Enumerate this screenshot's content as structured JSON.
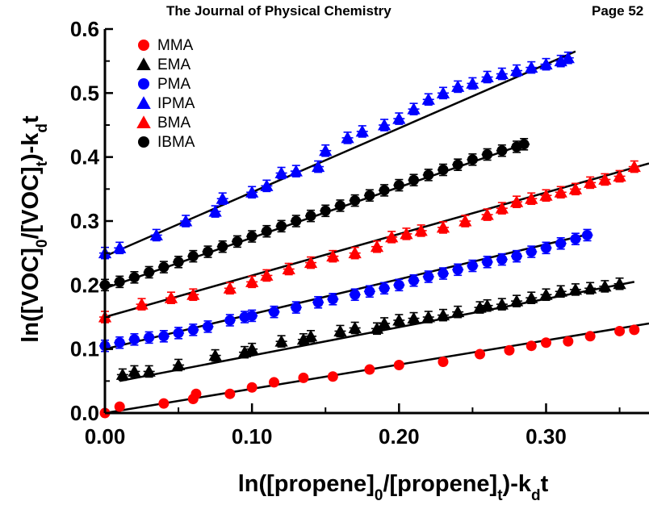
{
  "header": {
    "journal": "The Journal of Physical Chemistry",
    "page": "Page 52"
  },
  "chart_data": {
    "type": "scatter",
    "title": "",
    "xlabel": "ln([propene]0/[propene]t)-kdt",
    "ylabel": "ln([VOC]0/[VOC]t)-kdt",
    "xlim": [
      0.0,
      0.37
    ],
    "ylim": [
      0.0,
      0.6
    ],
    "x_ticks": [
      "0.00",
      "0.10",
      "0.20",
      "0.30"
    ],
    "y_ticks": [
      "0.0",
      "0.1",
      "0.2",
      "0.3",
      "0.4",
      "0.5",
      "0.6"
    ],
    "legend_position": "top-left",
    "series": [
      {
        "name": "MMA",
        "marker": "circle",
        "color": "#ff0000",
        "error_bars": false,
        "fit_line": {
          "x": [
            0.0,
            0.37
          ],
          "y": [
            0.0,
            0.14
          ]
        },
        "points": [
          [
            0.0,
            0.0
          ],
          [
            0.01,
            0.01
          ],
          [
            0.04,
            0.015
          ],
          [
            0.06,
            0.022
          ],
          [
            0.062,
            0.03
          ],
          [
            0.085,
            0.03
          ],
          [
            0.1,
            0.04
          ],
          [
            0.115,
            0.048
          ],
          [
            0.135,
            0.055
          ],
          [
            0.155,
            0.057
          ],
          [
            0.18,
            0.068
          ],
          [
            0.2,
            0.075
          ],
          [
            0.23,
            0.08
          ],
          [
            0.255,
            0.092
          ],
          [
            0.275,
            0.098
          ],
          [
            0.29,
            0.105
          ],
          [
            0.3,
            0.11
          ],
          [
            0.315,
            0.112
          ],
          [
            0.33,
            0.12
          ],
          [
            0.35,
            0.128
          ],
          [
            0.36,
            0.13
          ]
        ]
      },
      {
        "name": "EMA",
        "marker": "triangle",
        "color": "#000000",
        "error_bars": true,
        "fit_line": {
          "x": [
            0.01,
            0.36
          ],
          "y": [
            0.05,
            0.205
          ]
        },
        "points": [
          [
            0.012,
            0.06
          ],
          [
            0.02,
            0.065
          ],
          [
            0.03,
            0.065
          ],
          [
            0.05,
            0.075
          ],
          [
            0.075,
            0.09
          ],
          [
            0.095,
            0.095
          ],
          [
            0.1,
            0.1
          ],
          [
            0.12,
            0.112
          ],
          [
            0.135,
            0.115
          ],
          [
            0.14,
            0.12
          ],
          [
            0.16,
            0.128
          ],
          [
            0.17,
            0.133
          ],
          [
            0.185,
            0.132
          ],
          [
            0.19,
            0.14
          ],
          [
            0.2,
            0.145
          ],
          [
            0.21,
            0.148
          ],
          [
            0.22,
            0.15
          ],
          [
            0.23,
            0.153
          ],
          [
            0.24,
            0.158
          ],
          [
            0.255,
            0.165
          ],
          [
            0.26,
            0.168
          ],
          [
            0.27,
            0.17
          ],
          [
            0.28,
            0.175
          ],
          [
            0.29,
            0.18
          ],
          [
            0.3,
            0.185
          ],
          [
            0.31,
            0.19
          ],
          [
            0.32,
            0.193
          ],
          [
            0.33,
            0.195
          ],
          [
            0.34,
            0.198
          ],
          [
            0.35,
            0.202
          ]
        ]
      },
      {
        "name": "PMA",
        "marker": "circle",
        "color": "#0000ff",
        "error_bars": true,
        "fit_line": {
          "x": [
            0.0,
            0.33
          ],
          "y": [
            0.1,
            0.28
          ]
        },
        "points": [
          [
            0.0,
            0.105
          ],
          [
            0.01,
            0.11
          ],
          [
            0.02,
            0.115
          ],
          [
            0.03,
            0.118
          ],
          [
            0.04,
            0.12
          ],
          [
            0.05,
            0.125
          ],
          [
            0.06,
            0.13
          ],
          [
            0.07,
            0.135
          ],
          [
            0.085,
            0.145
          ],
          [
            0.095,
            0.15
          ],
          [
            0.1,
            0.152
          ],
          [
            0.115,
            0.158
          ],
          [
            0.13,
            0.165
          ],
          [
            0.145,
            0.173
          ],
          [
            0.155,
            0.178
          ],
          [
            0.17,
            0.185
          ],
          [
            0.18,
            0.19
          ],
          [
            0.19,
            0.195
          ],
          [
            0.2,
            0.2
          ],
          [
            0.21,
            0.207
          ],
          [
            0.22,
            0.213
          ],
          [
            0.23,
            0.218
          ],
          [
            0.24,
            0.224
          ],
          [
            0.25,
            0.23
          ],
          [
            0.26,
            0.236
          ],
          [
            0.27,
            0.24
          ],
          [
            0.28,
            0.245
          ],
          [
            0.29,
            0.252
          ],
          [
            0.3,
            0.258
          ],
          [
            0.31,
            0.265
          ],
          [
            0.32,
            0.272
          ],
          [
            0.328,
            0.278
          ]
        ]
      },
      {
        "name": "IPMA",
        "marker": "triangle",
        "color": "#0000ff",
        "error_bars": true,
        "fit_line": {
          "x": [
            0.0,
            0.32
          ],
          "y": [
            0.245,
            0.565
          ]
        },
        "points": [
          [
            0.0,
            0.25
          ],
          [
            0.01,
            0.258
          ],
          [
            0.035,
            0.278
          ],
          [
            0.055,
            0.3
          ],
          [
            0.075,
            0.315
          ],
          [
            0.08,
            0.335
          ],
          [
            0.1,
            0.345
          ],
          [
            0.11,
            0.355
          ],
          [
            0.12,
            0.375
          ],
          [
            0.13,
            0.378
          ],
          [
            0.145,
            0.385
          ],
          [
            0.15,
            0.41
          ],
          [
            0.165,
            0.43
          ],
          [
            0.175,
            0.44
          ],
          [
            0.19,
            0.45
          ],
          [
            0.2,
            0.46
          ],
          [
            0.21,
            0.475
          ],
          [
            0.22,
            0.49
          ],
          [
            0.23,
            0.5
          ],
          [
            0.24,
            0.51
          ],
          [
            0.25,
            0.515
          ],
          [
            0.26,
            0.525
          ],
          [
            0.27,
            0.53
          ],
          [
            0.28,
            0.535
          ],
          [
            0.29,
            0.54
          ],
          [
            0.3,
            0.545
          ],
          [
            0.31,
            0.55
          ],
          [
            0.315,
            0.555
          ]
        ]
      },
      {
        "name": "BMA",
        "marker": "triangle",
        "color": "#ff0000",
        "error_bars": true,
        "fit_line": {
          "x": [
            0.0,
            0.37
          ],
          "y": [
            0.15,
            0.39
          ]
        },
        "points": [
          [
            0.0,
            0.15
          ],
          [
            0.025,
            0.17
          ],
          [
            0.045,
            0.18
          ],
          [
            0.06,
            0.185
          ],
          [
            0.085,
            0.195
          ],
          [
            0.1,
            0.205
          ],
          [
            0.11,
            0.215
          ],
          [
            0.125,
            0.225
          ],
          [
            0.14,
            0.235
          ],
          [
            0.155,
            0.245
          ],
          [
            0.17,
            0.25
          ],
          [
            0.185,
            0.26
          ],
          [
            0.195,
            0.275
          ],
          [
            0.205,
            0.28
          ],
          [
            0.215,
            0.285
          ],
          [
            0.23,
            0.29
          ],
          [
            0.245,
            0.3
          ],
          [
            0.26,
            0.31
          ],
          [
            0.27,
            0.32
          ],
          [
            0.28,
            0.33
          ],
          [
            0.29,
            0.335
          ],
          [
            0.3,
            0.34
          ],
          [
            0.31,
            0.345
          ],
          [
            0.32,
            0.35
          ],
          [
            0.33,
            0.36
          ],
          [
            0.34,
            0.365
          ],
          [
            0.35,
            0.37
          ],
          [
            0.36,
            0.385
          ]
        ]
      },
      {
        "name": "IBMA",
        "marker": "circle",
        "color": "#000000",
        "error_bars": true,
        "fit_line": {
          "x": [
            0.0,
            0.285
          ],
          "y": [
            0.195,
            0.42
          ]
        },
        "points": [
          [
            0.0,
            0.2
          ],
          [
            0.01,
            0.205
          ],
          [
            0.02,
            0.212
          ],
          [
            0.03,
            0.22
          ],
          [
            0.04,
            0.228
          ],
          [
            0.05,
            0.236
          ],
          [
            0.06,
            0.245
          ],
          [
            0.07,
            0.252
          ],
          [
            0.08,
            0.26
          ],
          [
            0.09,
            0.268
          ],
          [
            0.1,
            0.276
          ],
          [
            0.11,
            0.284
          ],
          [
            0.12,
            0.292
          ],
          [
            0.13,
            0.3
          ],
          [
            0.14,
            0.308
          ],
          [
            0.15,
            0.316
          ],
          [
            0.16,
            0.324
          ],
          [
            0.17,
            0.332
          ],
          [
            0.18,
            0.34
          ],
          [
            0.19,
            0.348
          ],
          [
            0.2,
            0.356
          ],
          [
            0.21,
            0.364
          ],
          [
            0.22,
            0.372
          ],
          [
            0.23,
            0.38
          ],
          [
            0.24,
            0.388
          ],
          [
            0.25,
            0.396
          ],
          [
            0.26,
            0.404
          ],
          [
            0.27,
            0.41
          ],
          [
            0.28,
            0.416
          ],
          [
            0.285,
            0.42
          ]
        ]
      }
    ]
  }
}
